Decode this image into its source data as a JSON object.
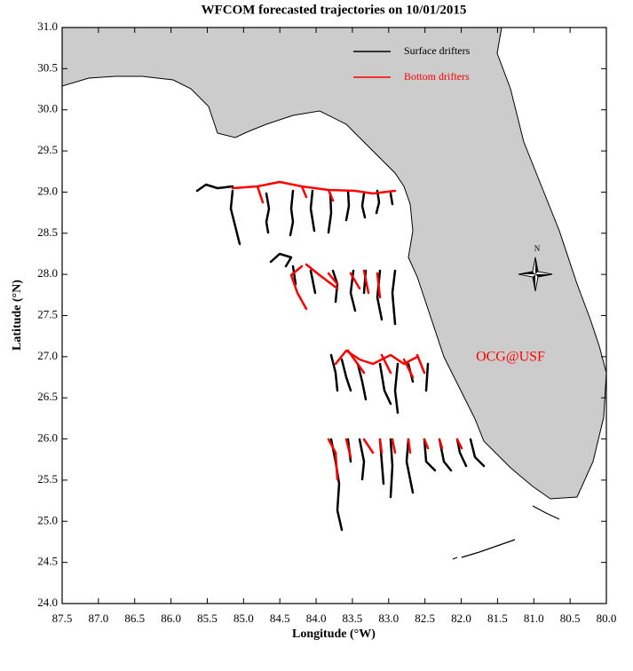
{
  "chart_data": {
    "type": "map",
    "title": "WFCOM forecasted trajectories on 10/01/2015",
    "x_label": "Longitude (°W)",
    "y_label": "Latitude (°N)",
    "xlim": [
      87.5,
      80.0
    ],
    "ylim": [
      24.0,
      31.0
    ],
    "xticks": [
      87.5,
      {
        "value": 87.0,
        "label": "87.0"
      },
      86.5,
      {
        "value": 86.0,
        "label": "86.0"
      },
      85.5,
      {
        "value": 85.0,
        "label": "85.0"
      },
      84.5,
      {
        "value": 84.0,
        "label": "84.0"
      },
      83.5,
      {
        "value": 83.0,
        "label": "83.0"
      },
      82.5,
      {
        "value": 82.0,
        "label": "82.0"
      },
      81.5,
      {
        "value": 81.0,
        "label": "81.0"
      },
      80.5,
      {
        "value": 80.0,
        "label": "80.0"
      }
    ],
    "yticks": [
      {
        "value": 24.0,
        "label": "24.0"
      },
      24.5,
      {
        "value": 25.0,
        "label": "25.0"
      },
      25.5,
      {
        "value": 26.0,
        "label": "26.0"
      },
      26.5,
      {
        "value": 27.0,
        "label": "27.0"
      },
      27.5,
      {
        "value": 28.0,
        "label": "28.0"
      },
      28.5,
      {
        "value": 29.0,
        "label": "29.0"
      },
      29.5,
      {
        "value": 30.0,
        "label": "30.0"
      },
      30.5,
      {
        "value": 31.0,
        "label": "31.0"
      }
    ],
    "series": [
      {
        "name": "Surface drifters",
        "color": "#000000"
      },
      {
        "name": "Bottom drifters",
        "color": "#ff0000"
      }
    ],
    "annotations": [
      "OCG@USF",
      "N"
    ]
  }
}
